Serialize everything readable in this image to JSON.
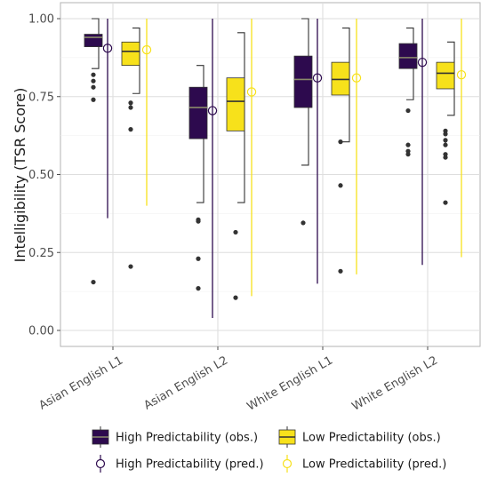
{
  "chart_data": {
    "type": "boxplot",
    "ylabel": "Intelligibility (TSR Score)",
    "ylim": [
      0,
      1.0
    ],
    "yticks": [
      0.0,
      0.25,
      0.5,
      0.75,
      1.0
    ],
    "ytick_labels": [
      "0.00",
      "0.25",
      "0.50",
      "0.75",
      "1.00"
    ],
    "categories": [
      "Asian English L1",
      "Asian English L2",
      "White English L1",
      "White English L2"
    ],
    "grid": true,
    "legend_position": "bottom",
    "colors": {
      "high": "#2d0a4e",
      "low": "#f7e11b",
      "outlier": "#333333",
      "bracket": "#333333"
    },
    "legend": [
      {
        "label": "High Predictability (obs.)",
        "kind": "box",
        "series": "high"
      },
      {
        "label": "Low Predictability (obs.)",
        "kind": "box",
        "series": "low"
      },
      {
        "label": "High Predictability (pred.)",
        "kind": "point",
        "series": "high"
      },
      {
        "label": "Low Predictability (pred.)",
        "kind": "point",
        "series": "low"
      }
    ],
    "series": [
      {
        "key": "high",
        "boxes": [
          {
            "q1": 0.91,
            "median": 0.94,
            "q3": 0.95,
            "whisker_low": 0.84,
            "whisker_high": 1.0,
            "outliers": [
              0.82,
              0.8,
              0.78,
              0.74,
              0.155
            ]
          },
          {
            "q1": 0.615,
            "median": 0.715,
            "q3": 0.78,
            "whisker_low": 0.41,
            "whisker_high": 0.85,
            "outliers": [
              0.355,
              0.35,
              0.23,
              0.135
            ]
          },
          {
            "q1": 0.715,
            "median": 0.805,
            "q3": 0.88,
            "whisker_low": 0.53,
            "whisker_high": 1.0,
            "outliers": [
              0.345
            ]
          },
          {
            "q1": 0.84,
            "median": 0.875,
            "q3": 0.92,
            "whisker_low": 0.74,
            "whisker_high": 0.97,
            "outliers": [
              0.705,
              0.595,
              0.575,
              0.565
            ]
          }
        ],
        "pred": [
          {
            "mean": 0.905,
            "lower": 0.36,
            "upper": 1.0
          },
          {
            "mean": 0.705,
            "lower": 0.04,
            "upper": 1.0
          },
          {
            "mean": 0.81,
            "lower": 0.15,
            "upper": 1.0
          },
          {
            "mean": 0.86,
            "lower": 0.21,
            "upper": 1.0
          }
        ]
      },
      {
        "key": "low",
        "boxes": [
          {
            "q1": 0.85,
            "median": 0.895,
            "q3": 0.925,
            "whisker_low": 0.76,
            "whisker_high": 0.97,
            "outliers": [
              0.73,
              0.715,
              0.645,
              0.205
            ]
          },
          {
            "q1": 0.64,
            "median": 0.735,
            "q3": 0.81,
            "whisker_low": 0.41,
            "whisker_high": 0.955,
            "outliers": [
              0.315,
              0.105
            ]
          },
          {
            "q1": 0.755,
            "median": 0.805,
            "q3": 0.86,
            "whisker_low": 0.605,
            "whisker_high": 0.97,
            "outliers": [
              0.605,
              0.465,
              0.19
            ]
          },
          {
            "q1": 0.775,
            "median": 0.825,
            "q3": 0.86,
            "whisker_low": 0.69,
            "whisker_high": 0.925,
            "outliers": [
              0.64,
              0.63,
              0.61,
              0.595,
              0.565,
              0.555,
              0.41
            ]
          }
        ],
        "pred": [
          {
            "mean": 0.9,
            "lower": 0.4,
            "upper": 1.0
          },
          {
            "mean": 0.765,
            "lower": 0.11,
            "upper": 1.0
          },
          {
            "mean": 0.81,
            "lower": 0.18,
            "upper": 1.0
          },
          {
            "mean": 0.82,
            "lower": 0.235,
            "upper": 1.0
          }
        ]
      }
    ]
  }
}
